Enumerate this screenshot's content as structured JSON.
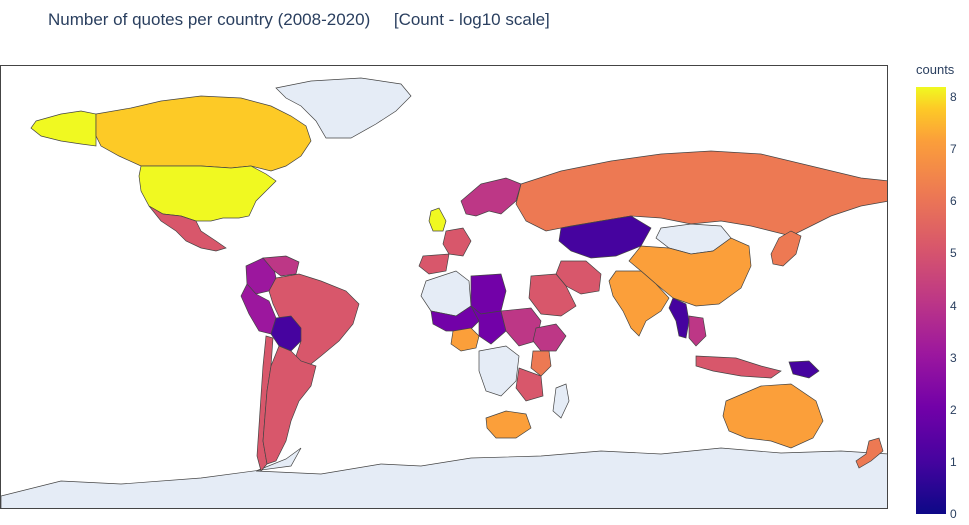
{
  "title": "Number of quotes per country (2008-2020)     [Count - log10 scale]",
  "colorbar": {
    "title": "counts",
    "ticks": [
      "8",
      "7",
      "6",
      "5",
      "4",
      "3",
      "2",
      "1",
      "0"
    ],
    "range": [
      0,
      8.2
    ],
    "colorscale": [
      "#0d0887",
      "#46039f",
      "#7201a8",
      "#9c179e",
      "#bd3786",
      "#d8576b",
      "#ed7953",
      "#fb9f3a",
      "#fdca26",
      "#f0f921"
    ]
  },
  "colors": {
    "no_data": "#e5ecf6",
    "border": "#444444"
  },
  "countries": [
    {
      "name": "United States",
      "value": 8.2
    },
    {
      "name": "Canada",
      "value": 6.9
    },
    {
      "name": "Alaska (US)",
      "value": 8.2
    },
    {
      "name": "Mexico",
      "value": 4.2
    },
    {
      "name": "Greenland",
      "value": null
    },
    {
      "name": "Brazil",
      "value": 4.1
    },
    {
      "name": "Argentina",
      "value": 4.8
    },
    {
      "name": "Chile",
      "value": 4.6
    },
    {
      "name": "Peru",
      "value": 2.3
    },
    {
      "name": "Bolivia",
      "value": 1.1
    },
    {
      "name": "Colombia",
      "value": 3.0
    },
    {
      "name": "Venezuela",
      "value": 3.6
    },
    {
      "name": "Russia",
      "value": 5.6
    },
    {
      "name": "China",
      "value": 6.2
    },
    {
      "name": "India",
      "value": 6.8
    },
    {
      "name": "Kazakhstan",
      "value": 1.0
    },
    {
      "name": "Mongolia",
      "value": null
    },
    {
      "name": "Australia",
      "value": 6.8
    },
    {
      "name": "United Kingdom",
      "value": 7.8
    },
    {
      "name": "France",
      "value": 5.0
    },
    {
      "name": "Spain",
      "value": 4.6
    },
    {
      "name": "Scandinavia",
      "value": 3.5
    },
    {
      "name": "Iran",
      "value": 4.6
    },
    {
      "name": "Saudi Arabia",
      "value": 4.4
    },
    {
      "name": "Algeria",
      "value": null
    },
    {
      "name": "Libya",
      "value": 2.0
    },
    {
      "name": "Niger",
      "value": 1.8
    },
    {
      "name": "Chad",
      "value": 1.5
    },
    {
      "name": "Sudan",
      "value": 3.2
    },
    {
      "name": "Ethiopia",
      "value": 4.0
    },
    {
      "name": "DR Congo",
      "value": null
    },
    {
      "name": "Nigeria",
      "value": 6.5
    },
    {
      "name": "South Africa",
      "value": 6.8
    },
    {
      "name": "Kenya",
      "value": 5.6
    },
    {
      "name": "Tanzania",
      "value": 4.4
    },
    {
      "name": "Madagascar",
      "value": null
    },
    {
      "name": "Indonesia",
      "value": 5.0
    },
    {
      "name": "Papua New Guinea",
      "value": 1.0
    },
    {
      "name": "Myanmar",
      "value": 1.0
    },
    {
      "name": "Thailand",
      "value": 4.0
    },
    {
      "name": "Japan",
      "value": 5.6
    },
    {
      "name": "New Zealand",
      "value": 5.6
    },
    {
      "name": "Antarctica",
      "value": null
    }
  ]
}
